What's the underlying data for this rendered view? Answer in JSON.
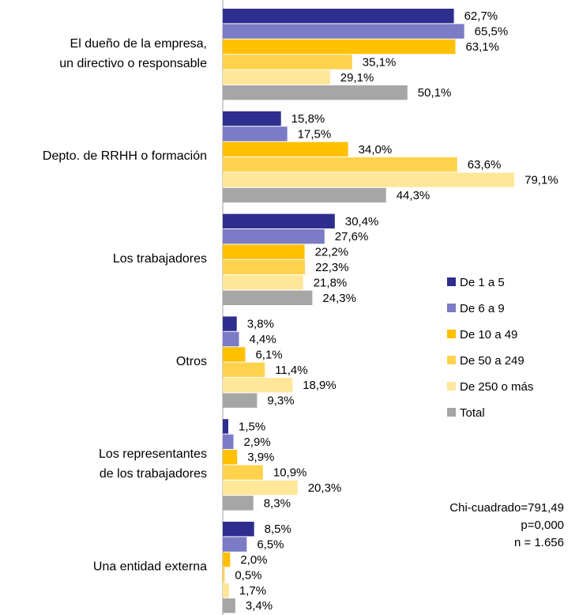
{
  "chart_data": {
    "type": "bar",
    "orientation": "horizontal",
    "categories": [
      [
        "El dueño de la empresa,",
        "un directivo o responsable"
      ],
      [
        "Depto. de RRHH o formación"
      ],
      [
        "Los trabajadores"
      ],
      [
        "Otros"
      ],
      [
        "Los representantes",
        "de los trabajadores"
      ],
      [
        "Una entidad externa"
      ]
    ],
    "series": [
      {
        "name": "De 1 a 5",
        "color": "#2e2e8f",
        "values": [
          62.7,
          15.8,
          30.4,
          3.8,
          1.5,
          8.5
        ],
        "value_labels": [
          "62,7%",
          "15,8%",
          "30,4%",
          "3,8%",
          "1,5%",
          "8,5%"
        ]
      },
      {
        "name": "De 6 a 9",
        "color": "#7b7bc6",
        "values": [
          65.5,
          17.5,
          27.6,
          4.4,
          2.9,
          6.5
        ],
        "value_labels": [
          "65,5%",
          "17,5%",
          "27,6%",
          "4,4%",
          "2,9%",
          "6,5%"
        ]
      },
      {
        "name": "De 10 a 49",
        "color": "#ffc000",
        "values": [
          63.1,
          34.0,
          22.2,
          6.1,
          3.9,
          2.0
        ],
        "value_labels": [
          "63,1%",
          "34,0%",
          "22,2%",
          "6,1%",
          "3,9%",
          "2,0%"
        ]
      },
      {
        "name": "De 50 a 249",
        "color": "#ffd24d",
        "values": [
          35.1,
          63.6,
          22.3,
          11.4,
          10.9,
          0.5
        ],
        "value_labels": [
          "35,1%",
          "63,6%",
          "22,3%",
          "11,4%",
          "10,9%",
          "0,5%"
        ]
      },
      {
        "name": "De 250 o más",
        "color": "#ffe699",
        "values": [
          29.1,
          79.1,
          21.8,
          18.9,
          20.3,
          1.7
        ],
        "value_labels": [
          "29,1%",
          "79,1%",
          "21,8%",
          "18,9%",
          "20,3%",
          "1,7%"
        ]
      },
      {
        "name": "Total",
        "color": "#a6a6a6",
        "values": [
          50.1,
          44.3,
          24.3,
          9.3,
          8.3,
          3.4
        ],
        "value_labels": [
          "50,1%",
          "44,3%",
          "24,3%",
          "9,3%",
          "8,3%",
          "3,4%"
        ]
      }
    ],
    "xlim": [
      0,
      96
    ],
    "annotations": [
      "Chi-cuadrado=791,49",
      "p=0,000",
      "n = 1.656"
    ]
  }
}
